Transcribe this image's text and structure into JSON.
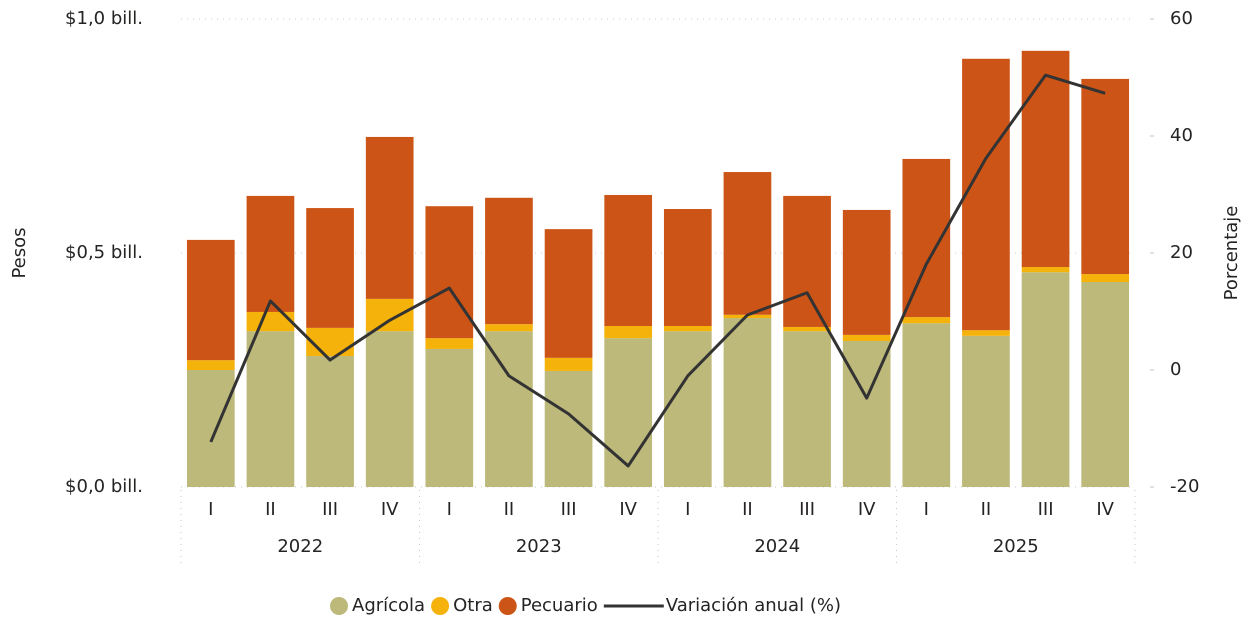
{
  "chart_data": {
    "type": "bar",
    "stacked": true,
    "y_label": "Pesos",
    "y2_label": "Porcentaje",
    "categories": [
      "I",
      "II",
      "III",
      "IV",
      "I",
      "II",
      "III",
      "IV",
      "I",
      "II",
      "III",
      "IV",
      "I",
      "II",
      "III",
      "IV"
    ],
    "years": [
      "2022",
      "2023",
      "2024",
      "2025"
    ],
    "series": [
      {
        "name": "Agrícola",
        "type": "bar",
        "color": "#bdb97a",
        "values": [
          0.25,
          0.333,
          0.28,
          0.333,
          0.295,
          0.333,
          0.248,
          0.318,
          0.333,
          0.361,
          0.333,
          0.312,
          0.35,
          0.323,
          0.459,
          0.438
        ]
      },
      {
        "name": "Otra",
        "type": "bar",
        "color": "#f5b20a",
        "values": [
          0.021,
          0.041,
          0.06,
          0.069,
          0.023,
          0.015,
          0.028,
          0.026,
          0.011,
          0.007,
          0.009,
          0.013,
          0.013,
          0.012,
          0.011,
          0.017
        ]
      },
      {
        "name": "Pecuario",
        "type": "bar",
        "color": "#cc5416",
        "values": [
          0.257,
          0.248,
          0.256,
          0.346,
          0.282,
          0.27,
          0.275,
          0.28,
          0.25,
          0.305,
          0.28,
          0.267,
          0.338,
          0.58,
          0.462,
          0.417
        ]
      },
      {
        "name": "Variación anual (%)",
        "type": "line",
        "axis": "y2",
        "color": "#333333",
        "values": [
          -12.3,
          11.8,
          1.7,
          8.5,
          14,
          -1,
          -7.5,
          -16.4,
          -1,
          9.4,
          13.2,
          -4.8,
          18.1,
          36.2,
          50.4,
          47.3
        ]
      }
    ],
    "ylim": [
      0,
      1.0
    ],
    "yticks": [
      {
        "value": 0,
        "label": "$0,0 bill."
      },
      {
        "value": 0.5,
        "label": "$0,5 bill."
      },
      {
        "value": 1.0,
        "label": "$1,0 bill."
      }
    ],
    "y2lim": [
      -20,
      60
    ],
    "y2ticks": [
      -20,
      0,
      20,
      40,
      60
    ],
    "grid": true,
    "legend": "bottom"
  }
}
